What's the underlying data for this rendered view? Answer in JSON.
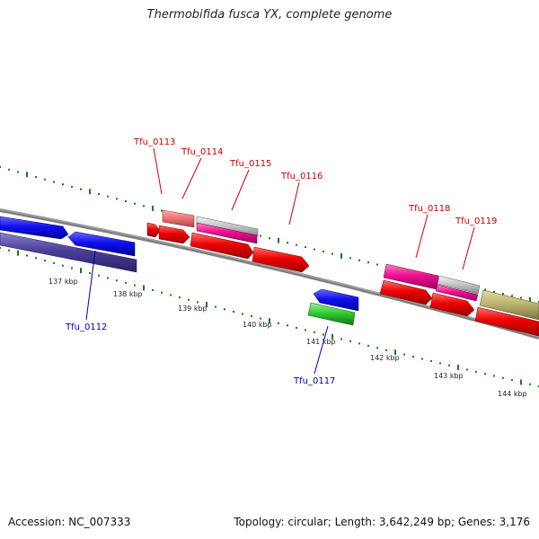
{
  "title": "Thermobifida fusca YX, complete genome",
  "footer": {
    "accession": "Accession: NC_007333",
    "stats": "Topology: circular; Length: 3,642,249 bp; Genes: 3,176"
  },
  "colors": {
    "backbone": "#7f7f7f",
    "tick": "#1a7a1a",
    "label_forward": "#cc0000",
    "label_reverse": "#0000aa"
  },
  "ticks": [
    {
      "label": "137 kbp"
    },
    {
      "label": "138 kbp"
    },
    {
      "label": "139 kbp"
    },
    {
      "label": "140 kbp"
    },
    {
      "label": "141 kbp"
    },
    {
      "label": "142 kbp"
    },
    {
      "label": "143 kbp"
    },
    {
      "label": "144 kbp"
    }
  ],
  "gene_labels": [
    {
      "name": "Tfu_0112",
      "strand": "reverse"
    },
    {
      "name": "Tfu_0113",
      "strand": "forward"
    },
    {
      "name": "Tfu_0114",
      "strand": "forward"
    },
    {
      "name": "Tfu_0115",
      "strand": "forward"
    },
    {
      "name": "Tfu_0116",
      "strand": "forward"
    },
    {
      "name": "Tfu_0117",
      "strand": "reverse"
    },
    {
      "name": "Tfu_0118",
      "strand": "forward"
    },
    {
      "name": "Tfu_0119",
      "strand": "forward"
    }
  ]
}
